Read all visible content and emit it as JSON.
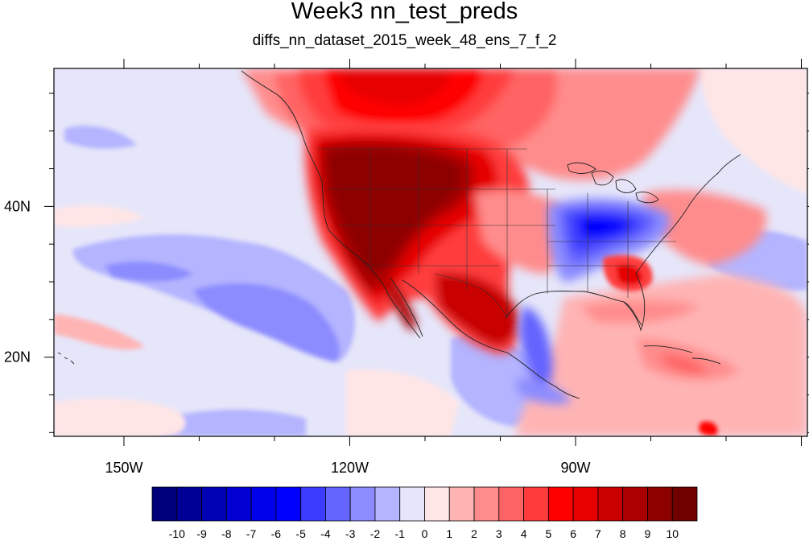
{
  "title": "Week3 nn_test_preds",
  "subtitle": "diffs_nn_dataset_2015_week_48_ens_7_f_2",
  "map": {
    "x_ticks": [
      {
        "label": "150W",
        "lon": -150
      },
      {
        "label": "120W",
        "lon": -120
      },
      {
        "label": "90W",
        "lon": -90
      }
    ],
    "y_ticks": [
      {
        "label": "40N",
        "lat": 40
      },
      {
        "label": "20N",
        "lat": 20
      }
    ]
  },
  "colorbar": {
    "labels": [
      "-10",
      "-9",
      "-8",
      "-7",
      "-6",
      "-5",
      "-4",
      "-3",
      "-2",
      "-1",
      "0",
      "1",
      "2",
      "3",
      "4",
      "5",
      "6",
      "7",
      "8",
      "9",
      "10"
    ],
    "colors": [
      "#00007a",
      "#000096",
      "#0000b4",
      "#0000d2",
      "#0000ea",
      "#0000ff",
      "#3c3cff",
      "#6464ff",
      "#8c8cff",
      "#b4b4ff",
      "#e6e6fa",
      "#ffe6e6",
      "#ffb4b4",
      "#ff8c8c",
      "#ff6464",
      "#ff3c3c",
      "#ff0000",
      "#e60000",
      "#c80000",
      "#aa0000",
      "#8c0000",
      "#6e0000"
    ]
  }
}
